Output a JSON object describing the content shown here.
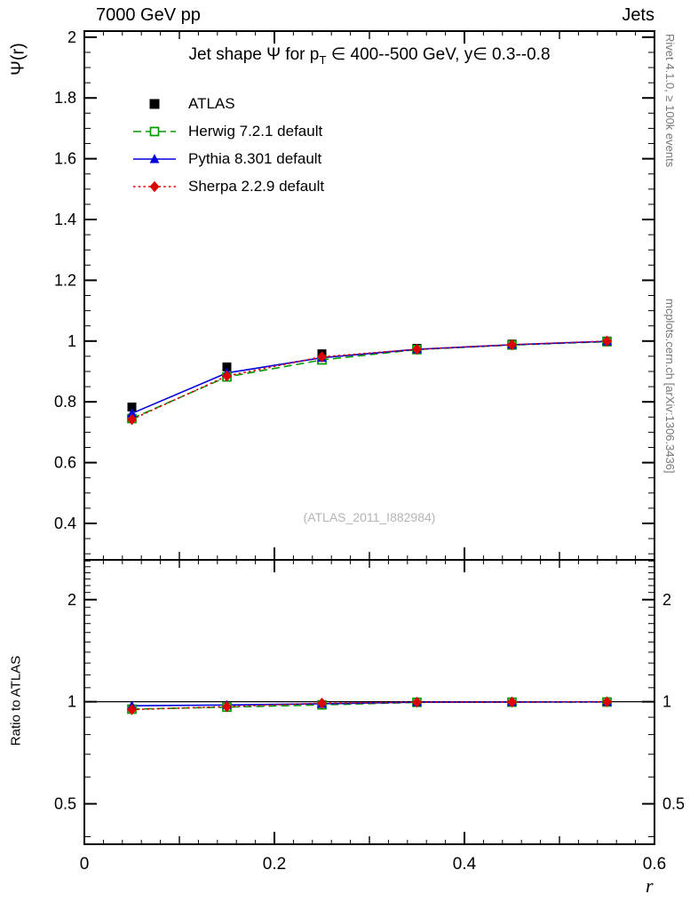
{
  "header": {
    "left": "7000 GeV pp",
    "right": "Jets"
  },
  "side_labels": {
    "rivet": "Rivet 4.1.0, ≥ 100k events",
    "mcplots": "mcplots.cern.ch [arXiv:1306.3436]"
  },
  "watermark": "(ATLAS_2011_I882984)",
  "title": {
    "pre": "Jet shape Ψ for p",
    "sub": "T",
    "post": " ∈ 400--500 GeV, y∈ 0.3--0.8"
  },
  "axes": {
    "main_ylabel": "Ψ(r)",
    "ratio_ylabel": "Ratio to ATLAS",
    "xlabel": "r"
  },
  "chart_data": {
    "type": "line",
    "title": "Jet shape Ψ for p_T ∈ 400--500 GeV, y∈ 0.3--0.8",
    "xlabel": "r",
    "ylabel": "Ψ(r)",
    "ratio_ylabel": "Ratio to ATLAS",
    "legend_position": "top-left",
    "grid": false,
    "x": [
      0.05,
      0.15,
      0.25,
      0.35,
      0.45,
      0.55
    ],
    "xlim": [
      0,
      0.6
    ],
    "xticks": [
      0,
      0.2,
      0.4,
      0.6
    ],
    "main_ylim": [
      0.28,
      2.02
    ],
    "main_yticks": [
      0.4,
      0.6,
      0.8,
      1,
      1.2,
      1.4,
      1.6,
      1.8,
      2
    ],
    "ratio_ylim": [
      0.38,
      2.62
    ],
    "ratio_yticks": [
      0.5,
      1,
      2
    ],
    "ratio_scale": "log",
    "series": [
      {
        "label": "ATLAS",
        "color": "#000000",
        "marker": "square-filled",
        "line": "none",
        "values": [
          0.783,
          0.915,
          0.958,
          0.976,
          0.99,
          1.0
        ]
      },
      {
        "label": "Herwig 7.2.1 default",
        "color": "#009900",
        "marker": "square-open",
        "line": "dashed",
        "values": [
          0.745,
          0.882,
          0.938,
          0.972,
          0.987,
          0.998
        ],
        "ratio_to_atlas": [
          0.951,
          0.964,
          0.979,
          0.996,
          0.997,
          0.998
        ]
      },
      {
        "label": "Pythia 8.301 default",
        "color": "#0000dd",
        "marker": "triangle-filled",
        "line": "solid",
        "values": [
          0.762,
          0.895,
          0.945,
          0.973,
          0.988,
          0.999
        ],
        "ratio_to_atlas": [
          0.973,
          0.978,
          0.986,
          0.997,
          0.998,
          0.999
        ]
      },
      {
        "label": "Sherpa 2.2.9 default",
        "color": "#dd0000",
        "marker": "diamond-filled",
        "line": "dotted",
        "values": [
          0.742,
          0.885,
          0.948,
          0.973,
          0.988,
          1.0
        ],
        "ratio_to_atlas": [
          0.948,
          0.967,
          0.99,
          0.997,
          0.998,
          1.0
        ]
      }
    ]
  }
}
